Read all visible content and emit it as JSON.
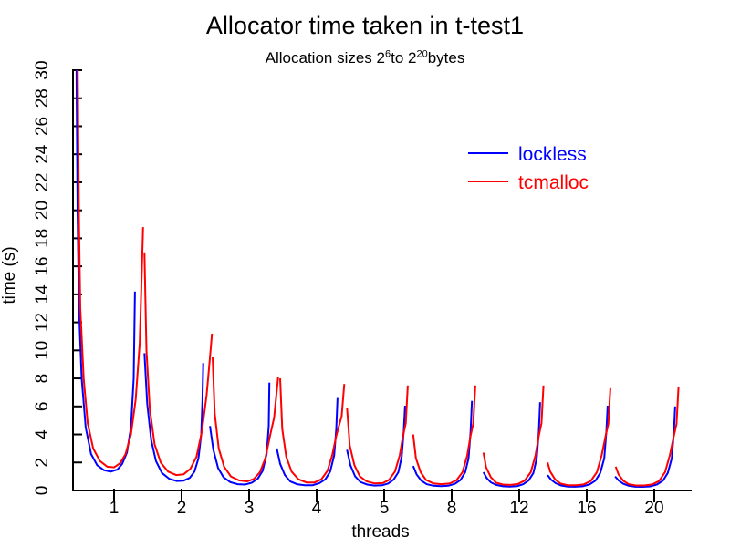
{
  "title": "Allocator time taken in t-test1",
  "subtitle": {
    "prefix": "Allocation sizes 2",
    "sup1": "6",
    "mid": "to 2",
    "sup2": "20",
    "suffix": "bytes"
  },
  "axes": {
    "x": {
      "label": "threads",
      "tick_labels": [
        "1",
        "2",
        "3",
        "4",
        "5",
        "8",
        "12",
        "16",
        "20"
      ]
    },
    "y": {
      "label": "time (s)",
      "tick_min": 0,
      "tick_max": 30,
      "tick_step": 2,
      "range": [
        0,
        30
      ]
    }
  },
  "legend": {
    "position": "upper-right",
    "items": [
      {
        "label": "lockless",
        "color": "#0000ff"
      },
      {
        "label": "tcmalloc",
        "color": "#ff0000"
      }
    ]
  },
  "colors": {
    "axis": "#000000",
    "text": "#000000",
    "background": "#ffffff"
  },
  "chart_data": {
    "type": "line",
    "title": "Allocator time taken in t-test1",
    "subtitle_text": "Allocation sizes 2^6 to 2^20 bytes",
    "xlabel": "threads",
    "ylabel": "time (s)",
    "ylim": [
      0,
      30
    ],
    "grid": false,
    "legend_position": "upper-right",
    "x_tick_labels": [
      "1",
      "2",
      "3",
      "4",
      "5",
      "8",
      "12",
      "16",
      "20"
    ],
    "x_units_note": "x is in tick-index units 1-9 (ticks = thread counts 1,2,3,4,5,8,12,16,20); within each thread group the curve sweeps allocation sizes 2^6 to 2^20 bytes, producing a spike at each group boundary; first spike is clipped at 30",
    "series": [
      {
        "name": "lockless",
        "color": "#0000ff",
        "segments": [
          [
            [
              0.44,
              32
            ],
            [
              0.46,
              20
            ],
            [
              0.48,
              13
            ],
            [
              0.52,
              8
            ],
            [
              0.58,
              4.5
            ],
            [
              0.66,
              2.6
            ],
            [
              0.75,
              1.8
            ],
            [
              0.85,
              1.45
            ],
            [
              0.95,
              1.35
            ],
            [
              1.05,
              1.5
            ],
            [
              1.12,
              1.9
            ],
            [
              1.19,
              2.7
            ],
            [
              1.25,
              4.5
            ],
            [
              1.29,
              8
            ],
            [
              1.31,
              14.2
            ]
          ],
          [
            [
              1.45,
              9.8
            ],
            [
              1.49,
              6.2
            ],
            [
              1.55,
              3.6
            ],
            [
              1.62,
              2.1
            ],
            [
              1.71,
              1.25
            ],
            [
              1.82,
              0.82
            ],
            [
              1.93,
              0.68
            ],
            [
              2.03,
              0.7
            ],
            [
              2.12,
              0.9
            ],
            [
              2.19,
              1.35
            ],
            [
              2.25,
              2.3
            ],
            [
              2.29,
              4
            ],
            [
              2.31,
              6.5
            ],
            [
              2.32,
              9.1
            ]
          ],
          [
            [
              2.42,
              4.6
            ],
            [
              2.47,
              2.9
            ],
            [
              2.54,
              1.6
            ],
            [
              2.62,
              0.95
            ],
            [
              2.72,
              0.6
            ],
            [
              2.83,
              0.45
            ],
            [
              2.94,
              0.42
            ],
            [
              3.04,
              0.55
            ],
            [
              3.13,
              0.85
            ],
            [
              3.2,
              1.4
            ],
            [
              3.26,
              2.6
            ],
            [
              3.29,
              4.6
            ],
            [
              3.3,
              7.7
            ]
          ],
          [
            [
              3.41,
              3
            ],
            [
              3.46,
              1.9
            ],
            [
              3.53,
              1.1
            ],
            [
              3.61,
              0.65
            ],
            [
              3.71,
              0.45
            ],
            [
              3.82,
              0.37
            ],
            [
              3.94,
              0.38
            ],
            [
              4.04,
              0.52
            ],
            [
              4.13,
              0.8
            ],
            [
              4.2,
              1.35
            ],
            [
              4.26,
              2.5
            ],
            [
              4.29,
              4.4
            ],
            [
              4.31,
              6.6
            ]
          ],
          [
            [
              4.45,
              2.9
            ],
            [
              4.5,
              1.8
            ],
            [
              4.57,
              1
            ],
            [
              4.65,
              0.6
            ],
            [
              4.75,
              0.42
            ],
            [
              4.86,
              0.35
            ],
            [
              4.97,
              0.37
            ],
            [
              5.06,
              0.5
            ],
            [
              5.14,
              0.78
            ],
            [
              5.21,
              1.3
            ],
            [
              5.26,
              2.4
            ],
            [
              5.29,
              4.3
            ],
            [
              5.31,
              6.05
            ]
          ],
          [
            [
              5.43,
              1.75
            ],
            [
              5.48,
              1.15
            ],
            [
              5.55,
              0.7
            ],
            [
              5.63,
              0.45
            ],
            [
              5.73,
              0.34
            ],
            [
              5.84,
              0.31
            ],
            [
              5.95,
              0.34
            ],
            [
              6.05,
              0.48
            ],
            [
              6.13,
              0.75
            ],
            [
              6.2,
              1.3
            ],
            [
              6.25,
              2.3
            ],
            [
              6.28,
              4.2
            ],
            [
              6.3,
              6.4
            ]
          ],
          [
            [
              6.47,
              1.3
            ],
            [
              6.52,
              0.88
            ],
            [
              6.58,
              0.58
            ],
            [
              6.66,
              0.4
            ],
            [
              6.76,
              0.3
            ],
            [
              6.86,
              0.28
            ],
            [
              6.97,
              0.31
            ],
            [
              7.06,
              0.45
            ],
            [
              7.14,
              0.72
            ],
            [
              7.21,
              1.25
            ],
            [
              7.26,
              2.3
            ],
            [
              7.29,
              4.2
            ],
            [
              7.31,
              6.3
            ]
          ],
          [
            [
              7.42,
              1.1
            ],
            [
              7.47,
              0.78
            ],
            [
              7.54,
              0.52
            ],
            [
              7.62,
              0.36
            ],
            [
              7.72,
              0.28
            ],
            [
              7.83,
              0.27
            ],
            [
              7.94,
              0.3
            ],
            [
              8.04,
              0.43
            ],
            [
              8.13,
              0.7
            ],
            [
              8.2,
              1.25
            ],
            [
              8.26,
              2.3
            ],
            [
              8.29,
              4.2
            ],
            [
              8.31,
              6.05
            ]
          ],
          [
            [
              8.42,
              1
            ],
            [
              8.47,
              0.72
            ],
            [
              8.54,
              0.48
            ],
            [
              8.62,
              0.34
            ],
            [
              8.72,
              0.27
            ],
            [
              8.83,
              0.26
            ],
            [
              8.94,
              0.29
            ],
            [
              9.04,
              0.42
            ],
            [
              9.13,
              0.7
            ],
            [
              9.2,
              1.25
            ],
            [
              9.26,
              2.3
            ],
            [
              9.29,
              4.2
            ],
            [
              9.31,
              6
            ]
          ]
        ]
      },
      {
        "name": "tcmalloc",
        "color": "#ff0000",
        "segments": [
          [
            [
              0.46,
              32
            ],
            [
              0.48,
              19.5
            ],
            [
              0.5,
              13
            ],
            [
              0.55,
              8
            ],
            [
              0.61,
              4.8
            ],
            [
              0.69,
              3
            ],
            [
              0.79,
              2.1
            ],
            [
              0.9,
              1.7
            ],
            [
              1,
              1.65
            ],
            [
              1.09,
              1.95
            ],
            [
              1.17,
              2.6
            ],
            [
              1.25,
              4
            ],
            [
              1.32,
              6.5
            ],
            [
              1.38,
              10.5
            ],
            [
              1.43,
              18.8
            ]
          ],
          [
            [
              1.45,
              17
            ],
            [
              1.48,
              10
            ],
            [
              1.53,
              5.8
            ],
            [
              1.6,
              3.3
            ],
            [
              1.69,
              2
            ],
            [
              1.8,
              1.35
            ],
            [
              1.92,
              1.1
            ],
            [
              2.03,
              1.15
            ],
            [
              2.13,
              1.55
            ],
            [
              2.22,
              2.4
            ],
            [
              2.3,
              4.2
            ],
            [
              2.37,
              6.8
            ],
            [
              2.42,
              9.5
            ],
            [
              2.45,
              11.2
            ]
          ],
          [
            [
              2.46,
              9.5
            ],
            [
              2.49,
              5.5
            ],
            [
              2.55,
              3
            ],
            [
              2.63,
              1.7
            ],
            [
              2.73,
              1
            ],
            [
              2.85,
              0.72
            ],
            [
              2.97,
              0.65
            ],
            [
              3.07,
              0.82
            ],
            [
              3.16,
              1.3
            ],
            [
              3.24,
              2.3
            ],
            [
              3.31,
              3.9
            ],
            [
              3.37,
              5.2
            ],
            [
              3.43,
              8.1
            ]
          ],
          [
            [
              3.46,
              8
            ],
            [
              3.49,
              4.4
            ],
            [
              3.55,
              2.4
            ],
            [
              3.63,
              1.35
            ],
            [
              3.73,
              0.8
            ],
            [
              3.85,
              0.57
            ],
            [
              3.97,
              0.57
            ],
            [
              4.07,
              0.8
            ],
            [
              4.16,
              1.4
            ],
            [
              4.23,
              2.5
            ],
            [
              4.29,
              3.9
            ],
            [
              4.34,
              4.8
            ],
            [
              4.37,
              5.3
            ],
            [
              4.41,
              7.6
            ]
          ],
          [
            [
              4.45,
              5.9
            ],
            [
              4.49,
              3.2
            ],
            [
              4.56,
              1.8
            ],
            [
              4.64,
              1
            ],
            [
              4.74,
              0.65
            ],
            [
              4.86,
              0.5
            ],
            [
              4.98,
              0.53
            ],
            [
              5.07,
              0.75
            ],
            [
              5.16,
              1.35
            ],
            [
              5.23,
              2.5
            ],
            [
              5.28,
              3.9
            ],
            [
              5.32,
              4.8
            ],
            [
              5.35,
              7.5
            ]
          ],
          [
            [
              5.43,
              4
            ],
            [
              5.47,
              2.3
            ],
            [
              5.54,
              1.3
            ],
            [
              5.62,
              0.75
            ],
            [
              5.73,
              0.5
            ],
            [
              5.85,
              0.45
            ],
            [
              5.97,
              0.5
            ],
            [
              6.07,
              0.73
            ],
            [
              6.16,
              1.3
            ],
            [
              6.23,
              2.5
            ],
            [
              6.28,
              3.9
            ],
            [
              6.32,
              4.8
            ],
            [
              6.35,
              7.5
            ]
          ],
          [
            [
              6.47,
              2.7
            ],
            [
              6.51,
              1.65
            ],
            [
              6.58,
              0.95
            ],
            [
              6.66,
              0.55
            ],
            [
              6.76,
              0.42
            ],
            [
              6.87,
              0.4
            ],
            [
              6.98,
              0.46
            ],
            [
              7.08,
              0.7
            ],
            [
              7.17,
              1.3
            ],
            [
              7.24,
              2.5
            ],
            [
              7.29,
              3.9
            ],
            [
              7.33,
              4.8
            ],
            [
              7.36,
              7.5
            ]
          ],
          [
            [
              7.42,
              2
            ],
            [
              7.46,
              1.35
            ],
            [
              7.53,
              0.8
            ],
            [
              7.61,
              0.5
            ],
            [
              7.72,
              0.38
            ],
            [
              7.84,
              0.37
            ],
            [
              7.96,
              0.44
            ],
            [
              8.06,
              0.68
            ],
            [
              8.15,
              1.3
            ],
            [
              8.22,
              2.5
            ],
            [
              8.28,
              3.9
            ],
            [
              8.32,
              4.75
            ],
            [
              8.35,
              7.3
            ]
          ],
          [
            [
              8.43,
              1.7
            ],
            [
              8.47,
              1.15
            ],
            [
              8.54,
              0.7
            ],
            [
              8.62,
              0.45
            ],
            [
              8.73,
              0.36
            ],
            [
              8.85,
              0.36
            ],
            [
              8.97,
              0.43
            ],
            [
              9.07,
              0.67
            ],
            [
              9.16,
              1.3
            ],
            [
              9.23,
              2.5
            ],
            [
              9.29,
              3.9
            ],
            [
              9.33,
              4.75
            ],
            [
              9.36,
              7.4
            ]
          ]
        ]
      }
    ]
  }
}
